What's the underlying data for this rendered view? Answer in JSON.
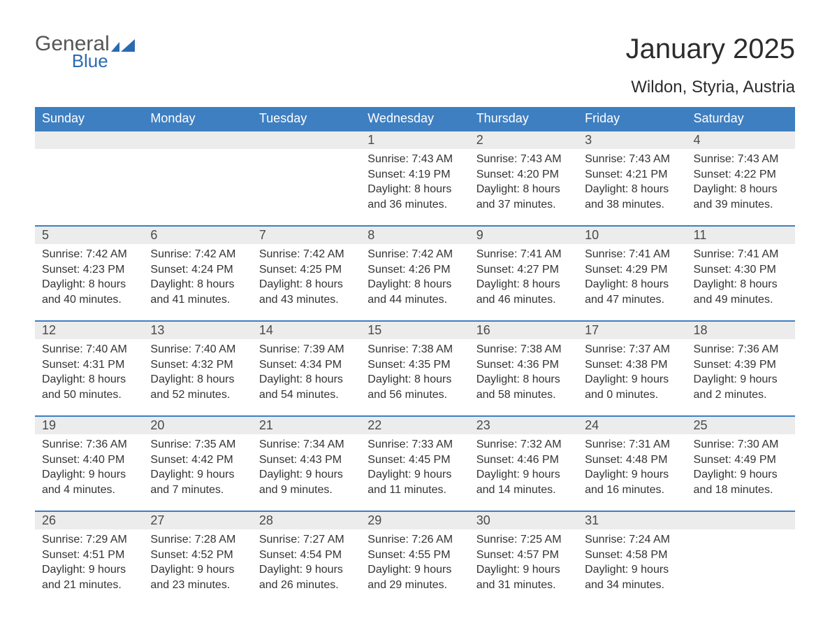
{
  "brand": {
    "word1": "General",
    "word2": "Blue",
    "icon_color": "#2a6bb0",
    "text_color": "#555"
  },
  "title": "January 2025",
  "location": "Wildon, Styria, Austria",
  "colors": {
    "header_bg": "#3e7fc1",
    "header_text": "#ffffff",
    "daynum_bg": "#ececec",
    "border_top": "#3e7fc1",
    "body_text": "#333333",
    "background": "#ffffff"
  },
  "weekdays": [
    "Sunday",
    "Monday",
    "Tuesday",
    "Wednesday",
    "Thursday",
    "Friday",
    "Saturday"
  ],
  "weeks": [
    [
      null,
      null,
      null,
      {
        "day": "1",
        "sunrise": "Sunrise: 7:43 AM",
        "sunset": "Sunset: 4:19 PM",
        "daylight": "Daylight: 8 hours and 36 minutes."
      },
      {
        "day": "2",
        "sunrise": "Sunrise: 7:43 AM",
        "sunset": "Sunset: 4:20 PM",
        "daylight": "Daylight: 8 hours and 37 minutes."
      },
      {
        "day": "3",
        "sunrise": "Sunrise: 7:43 AM",
        "sunset": "Sunset: 4:21 PM",
        "daylight": "Daylight: 8 hours and 38 minutes."
      },
      {
        "day": "4",
        "sunrise": "Sunrise: 7:43 AM",
        "sunset": "Sunset: 4:22 PM",
        "daylight": "Daylight: 8 hours and 39 minutes."
      }
    ],
    [
      {
        "day": "5",
        "sunrise": "Sunrise: 7:42 AM",
        "sunset": "Sunset: 4:23 PM",
        "daylight": "Daylight: 8 hours and 40 minutes."
      },
      {
        "day": "6",
        "sunrise": "Sunrise: 7:42 AM",
        "sunset": "Sunset: 4:24 PM",
        "daylight": "Daylight: 8 hours and 41 minutes."
      },
      {
        "day": "7",
        "sunrise": "Sunrise: 7:42 AM",
        "sunset": "Sunset: 4:25 PM",
        "daylight": "Daylight: 8 hours and 43 minutes."
      },
      {
        "day": "8",
        "sunrise": "Sunrise: 7:42 AM",
        "sunset": "Sunset: 4:26 PM",
        "daylight": "Daylight: 8 hours and 44 minutes."
      },
      {
        "day": "9",
        "sunrise": "Sunrise: 7:41 AM",
        "sunset": "Sunset: 4:27 PM",
        "daylight": "Daylight: 8 hours and 46 minutes."
      },
      {
        "day": "10",
        "sunrise": "Sunrise: 7:41 AM",
        "sunset": "Sunset: 4:29 PM",
        "daylight": "Daylight: 8 hours and 47 minutes."
      },
      {
        "day": "11",
        "sunrise": "Sunrise: 7:41 AM",
        "sunset": "Sunset: 4:30 PM",
        "daylight": "Daylight: 8 hours and 49 minutes."
      }
    ],
    [
      {
        "day": "12",
        "sunrise": "Sunrise: 7:40 AM",
        "sunset": "Sunset: 4:31 PM",
        "daylight": "Daylight: 8 hours and 50 minutes."
      },
      {
        "day": "13",
        "sunrise": "Sunrise: 7:40 AM",
        "sunset": "Sunset: 4:32 PM",
        "daylight": "Daylight: 8 hours and 52 minutes."
      },
      {
        "day": "14",
        "sunrise": "Sunrise: 7:39 AM",
        "sunset": "Sunset: 4:34 PM",
        "daylight": "Daylight: 8 hours and 54 minutes."
      },
      {
        "day": "15",
        "sunrise": "Sunrise: 7:38 AM",
        "sunset": "Sunset: 4:35 PM",
        "daylight": "Daylight: 8 hours and 56 minutes."
      },
      {
        "day": "16",
        "sunrise": "Sunrise: 7:38 AM",
        "sunset": "Sunset: 4:36 PM",
        "daylight": "Daylight: 8 hours and 58 minutes."
      },
      {
        "day": "17",
        "sunrise": "Sunrise: 7:37 AM",
        "sunset": "Sunset: 4:38 PM",
        "daylight": "Daylight: 9 hours and 0 minutes."
      },
      {
        "day": "18",
        "sunrise": "Sunrise: 7:36 AM",
        "sunset": "Sunset: 4:39 PM",
        "daylight": "Daylight: 9 hours and 2 minutes."
      }
    ],
    [
      {
        "day": "19",
        "sunrise": "Sunrise: 7:36 AM",
        "sunset": "Sunset: 4:40 PM",
        "daylight": "Daylight: 9 hours and 4 minutes."
      },
      {
        "day": "20",
        "sunrise": "Sunrise: 7:35 AM",
        "sunset": "Sunset: 4:42 PM",
        "daylight": "Daylight: 9 hours and 7 minutes."
      },
      {
        "day": "21",
        "sunrise": "Sunrise: 7:34 AM",
        "sunset": "Sunset: 4:43 PM",
        "daylight": "Daylight: 9 hours and 9 minutes."
      },
      {
        "day": "22",
        "sunrise": "Sunrise: 7:33 AM",
        "sunset": "Sunset: 4:45 PM",
        "daylight": "Daylight: 9 hours and 11 minutes."
      },
      {
        "day": "23",
        "sunrise": "Sunrise: 7:32 AM",
        "sunset": "Sunset: 4:46 PM",
        "daylight": "Daylight: 9 hours and 14 minutes."
      },
      {
        "day": "24",
        "sunrise": "Sunrise: 7:31 AM",
        "sunset": "Sunset: 4:48 PM",
        "daylight": "Daylight: 9 hours and 16 minutes."
      },
      {
        "day": "25",
        "sunrise": "Sunrise: 7:30 AM",
        "sunset": "Sunset: 4:49 PM",
        "daylight": "Daylight: 9 hours and 18 minutes."
      }
    ],
    [
      {
        "day": "26",
        "sunrise": "Sunrise: 7:29 AM",
        "sunset": "Sunset: 4:51 PM",
        "daylight": "Daylight: 9 hours and 21 minutes."
      },
      {
        "day": "27",
        "sunrise": "Sunrise: 7:28 AM",
        "sunset": "Sunset: 4:52 PM",
        "daylight": "Daylight: 9 hours and 23 minutes."
      },
      {
        "day": "28",
        "sunrise": "Sunrise: 7:27 AM",
        "sunset": "Sunset: 4:54 PM",
        "daylight": "Daylight: 9 hours and 26 minutes."
      },
      {
        "day": "29",
        "sunrise": "Sunrise: 7:26 AM",
        "sunset": "Sunset: 4:55 PM",
        "daylight": "Daylight: 9 hours and 29 minutes."
      },
      {
        "day": "30",
        "sunrise": "Sunrise: 7:25 AM",
        "sunset": "Sunset: 4:57 PM",
        "daylight": "Daylight: 9 hours and 31 minutes."
      },
      {
        "day": "31",
        "sunrise": "Sunrise: 7:24 AM",
        "sunset": "Sunset: 4:58 PM",
        "daylight": "Daylight: 9 hours and 34 minutes."
      },
      null
    ]
  ]
}
